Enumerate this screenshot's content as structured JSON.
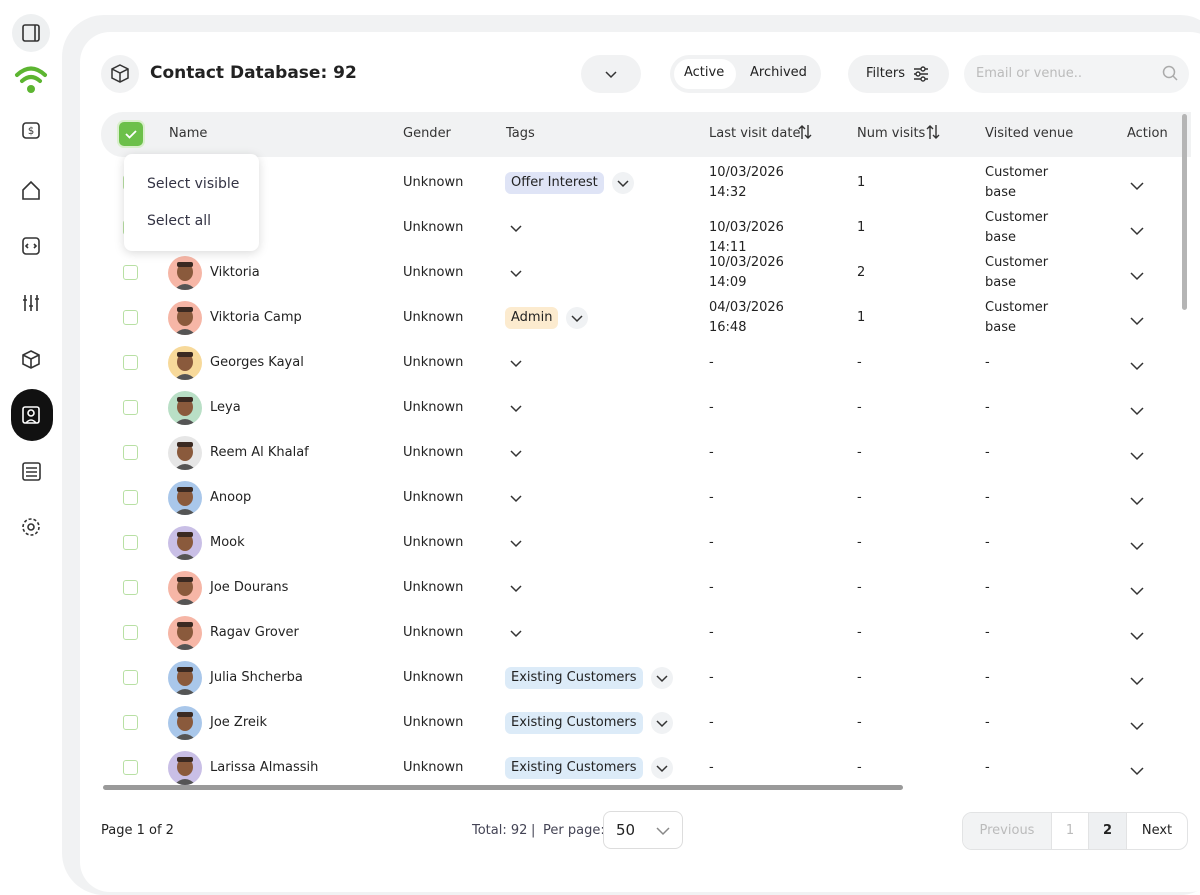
{
  "header": {
    "title": "Contact Database: 92",
    "tabs": [
      "Active",
      "Archived"
    ],
    "filters": "Filters",
    "search_placeholder": "Email or venue.."
  },
  "table": {
    "columns": [
      "Name",
      "Gender",
      "Tags",
      "Last visit date",
      "Num visits",
      "Visited venue",
      "Action"
    ],
    "menu": [
      "Select visible",
      "Select all"
    ],
    "rows": [
      {
        "gender": "Unknown",
        "tags": [
          {
            "label": "Offer Interest",
            "color": "#dfe4f6"
          }
        ],
        "date": "10/03/2026 14:32",
        "visits": 1,
        "venue": "Customer base"
      },
      {
        "gender": "Unknown",
        "tags": [],
        "date": "10/03/2026 14:11",
        "visits": 1,
        "venue": "Customer base"
      },
      {
        "name": "Viktoria",
        "gender": "Unknown",
        "tags": [],
        "date": "10/03/2026 14:09",
        "visits": 2,
        "venue": "Customer base"
      },
      {
        "name": "Viktoria Camp",
        "gender": "Unknown",
        "tags": [
          {
            "label": "Admin",
            "color": "#fcebcf"
          }
        ],
        "date": "04/03/2026 16:48",
        "visits": 1,
        "venue": "Customer base"
      },
      {
        "name": "Georges Kayal",
        "gender": "Unknown",
        "tags": [],
        "date": "-",
        "visits": "-",
        "venue": "-"
      },
      {
        "name": "Leya",
        "gender": "Unknown",
        "tags": [],
        "date": "-",
        "visits": "-",
        "venue": "-"
      },
      {
        "name": "Reem Al Khalaf",
        "gender": "Unknown",
        "tags": [],
        "date": "-",
        "visits": "-",
        "venue": "-"
      },
      {
        "name": "Anoop",
        "gender": "Unknown",
        "tags": [],
        "date": "-",
        "visits": "-",
        "venue": "-"
      },
      {
        "name": "Mook",
        "gender": "Unknown",
        "tags": [],
        "date": "-",
        "visits": "-",
        "venue": "-"
      },
      {
        "name": "Joe Dourans",
        "gender": "Unknown",
        "tags": [],
        "date": "-",
        "visits": "-",
        "venue": "-"
      },
      {
        "name": "Ragav Grover",
        "gender": "Unknown",
        "tags": [],
        "date": "-",
        "visits": "-",
        "venue": "-"
      },
      {
        "name": "Julia Shcherba",
        "gender": "Unknown",
        "tags": [
          {
            "label": "Existing Customers",
            "color": "#dcebf8"
          }
        ],
        "date": "-",
        "visits": "-",
        "venue": "-"
      },
      {
        "name": "Joe Zreik",
        "gender": "Unknown",
        "tags": [
          {
            "label": "Existing Customers",
            "color": "#dcebf8"
          }
        ],
        "date": "-",
        "visits": "-",
        "venue": "-"
      },
      {
        "name": "Larissa Almassih",
        "gender": "Unknown",
        "tags": [
          {
            "label": "Existing Customers",
            "color": "#dcebf8"
          }
        ],
        "date": "-",
        "visits": "-",
        "venue": "-"
      }
    ]
  },
  "footer": {
    "page": "Page 1 of 2",
    "total": "Total: 92",
    "separator": "|",
    "per_page_label": "Per page:",
    "per_page": "50",
    "pagination": [
      "Previous",
      "1",
      "2",
      "Next"
    ]
  }
}
